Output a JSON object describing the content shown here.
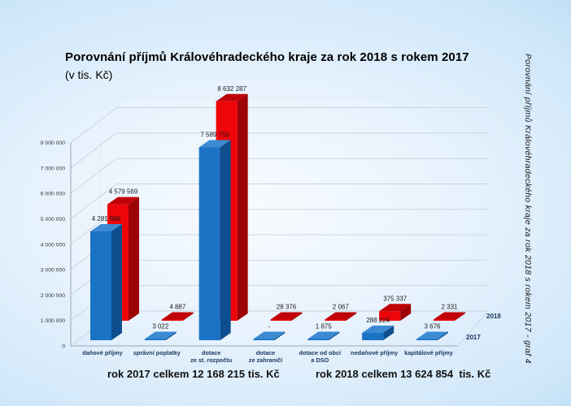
{
  "chart": {
    "title": "Porovnání příjmů Královéhradeckého kraje za rok 2018 s rokem 2017",
    "subtitle": "(v tis. Kč)",
    "side_caption": "Porovnání příjmů Královéhradeckého kraje za rok 2018 s rokem 2017 - graf 4",
    "footer": {
      "total_2017": "rok 2017 celkem 12 168 215 tis. Kč",
      "total_2018": "rok 2018 celkem 13 624 854  tis. Kč"
    }
  },
  "chart_data": {
    "type": "bar",
    "projection": "3d",
    "title": "Porovnání příjmů Královéhradeckého kraje za rok 2018 s rokem 2017",
    "units": "tis. Kč",
    "grid": true,
    "legend_position": "right-of-rows",
    "categories": [
      "daňové příjmy",
      "správní poplatky",
      "dotace\nze st. rozpočtu",
      "dotace\nze zahraničí",
      "dotace od obcí\na DSO",
      "nedaňové příjmy",
      "kapitálové příjmy"
    ],
    "series": [
      {
        "name": "2018",
        "row": "back",
        "color": "#ee0509",
        "color_top": "#c00309",
        "color_side": "#9c0206",
        "values": [
          4579569,
          4887,
          8632287,
          28376,
          2067,
          375337,
          2331
        ],
        "value_labels": [
          "4 579 569",
          "4 887",
          "8 632 287",
          "28 376",
          "2 067",
          "375 337",
          "2 331"
        ],
        "total_label": "rok 2018 celkem 13 624 854  tis. Kč"
      },
      {
        "name": "2017",
        "row": "front",
        "color": "#1b73c5",
        "color_top": "#3c8ad2",
        "color_side": "#0d4e8e",
        "values": [
          4281668,
          3022,
          7589750,
          0,
          1875,
          288224,
          3676
        ],
        "value_labels": [
          "4 281 668",
          "3 022",
          "7 589 750",
          "-",
          "1 875",
          "288 224",
          "3 676"
        ],
        "total_label": "rok 2017 celkem 12 168 215 tis. Kč"
      }
    ],
    "y_axis": {
      "min": 0,
      "max": 8000000,
      "step": 1000000,
      "tick_labels": [
        "0",
        "1 000 000",
        "2 000 000",
        "3 000 000",
        "4 000 000",
        "5 000 000",
        "6 000 000",
        "7 000 000",
        "8 000 000"
      ]
    },
    "colors": {
      "gridline": "#c9d2da",
      "axis": "#9fa6ad",
      "value_label": "#1a1a1a",
      "category_label": "#17375d",
      "series_label": "#17375d"
    }
  }
}
